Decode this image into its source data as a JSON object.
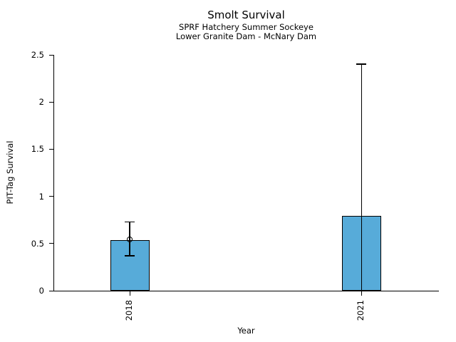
{
  "chart_data": {
    "type": "bar",
    "title": "Smolt Survival",
    "subtitle_lines": [
      "SPRF Hatchery Summer Sockeye",
      "Lower Granite Dam - McNary Dam"
    ],
    "xlabel": "Year",
    "ylabel": "PIT-Tag Survival",
    "categories": [
      "2018",
      "2021"
    ],
    "values": [
      0.54,
      0.79
    ],
    "error_low": [
      0.37,
      0.0
    ],
    "error_high": [
      0.73,
      2.4
    ],
    "point_markers": [
      0.54,
      null
    ],
    "ylim": [
      0,
      2.5
    ],
    "yticks": [
      {
        "value": 0,
        "label": "0"
      },
      {
        "value": 0.5,
        "label": "0.5"
      },
      {
        "value": 1,
        "label": "1"
      },
      {
        "value": 1.5,
        "label": "1.5"
      },
      {
        "value": 2,
        "label": "2"
      },
      {
        "value": 2.5,
        "label": "2.5"
      }
    ],
    "grid": false,
    "legend": false,
    "colors": {
      "bar_fill": "#57ABD9",
      "bar_edge": "#000000",
      "error": "#000000",
      "text": "#000000",
      "background": "#ffffff"
    }
  }
}
